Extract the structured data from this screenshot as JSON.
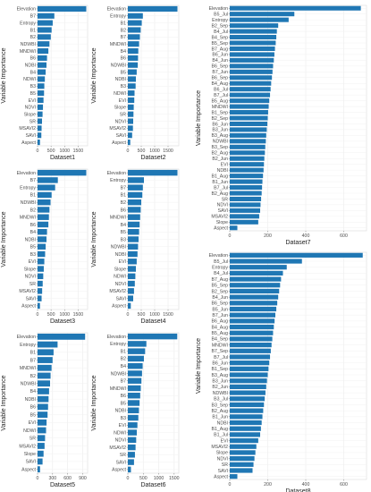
{
  "chart_data": [
    {
      "type": "bar",
      "orientation": "horizontal",
      "title": "",
      "xlabel": "Dataset1",
      "ylabel": "Variable Importance",
      "xlim": [
        0,
        1850
      ],
      "xticks": [
        0,
        500,
        1000,
        1500
      ],
      "grid": true,
      "categories": [
        "Elevation",
        "B7",
        "Entropy",
        "B1",
        "B2",
        "NDWBI",
        "MNDWI",
        "B6",
        "NDBI",
        "B4",
        "NDWI",
        "B3",
        "B5",
        "EVI",
        "NDVI",
        "Slope",
        "SR",
        "MSAVI2",
        "SAVI",
        "Aspect"
      ],
      "values": [
        1800,
        620,
        560,
        520,
        490,
        440,
        400,
        350,
        330,
        300,
        270,
        250,
        240,
        220,
        200,
        185,
        165,
        150,
        140,
        90
      ]
    },
    {
      "type": "bar",
      "orientation": "horizontal",
      "title": "",
      "xlabel": "Dataset2",
      "ylabel": "Variable Importance",
      "xlim": [
        0,
        1900
      ],
      "xticks": [
        0,
        500,
        1000,
        1500
      ],
      "grid": true,
      "categories": [
        "Elevation",
        "Entropy",
        "B1",
        "B2",
        "B7",
        "MNDWI",
        "B4",
        "B6",
        "NDWBI",
        "B5",
        "NDBI",
        "B3",
        "NDWI",
        "EVI",
        "Slope",
        "SR",
        "NDVI",
        "MSAVI2",
        "SAVI",
        "Aspect"
      ],
      "values": [
        1850,
        560,
        520,
        480,
        450,
        420,
        390,
        380,
        370,
        330,
        300,
        290,
        250,
        240,
        220,
        210,
        200,
        190,
        160,
        90
      ]
    },
    {
      "type": "bar",
      "orientation": "horizontal",
      "title": "",
      "xlabel": "Dataset3",
      "ylabel": "Variable Importance",
      "xlim": [
        0,
        1850
      ],
      "xticks": [
        0,
        500,
        1000,
        1500
      ],
      "grid": true,
      "categories": [
        "Elevation",
        "B7",
        "Entropy",
        "B1",
        "NDWBI",
        "B2",
        "MNDWI",
        "B6",
        "B4",
        "NDBI",
        "B5",
        "B3",
        "EVI",
        "Slope",
        "NDVI",
        "SR",
        "MSAVI2",
        "SAVI",
        "Aspect"
      ],
      "values": [
        1800,
        750,
        650,
        520,
        480,
        440,
        420,
        400,
        350,
        330,
        300,
        280,
        250,
        230,
        210,
        190,
        170,
        150,
        90
      ]
    },
    {
      "type": "bar",
      "orientation": "horizontal",
      "title": "",
      "xlabel": "Dataset4",
      "ylabel": "Variable Importance",
      "xlim": [
        0,
        1900
      ],
      "xticks": [
        0,
        500,
        1000,
        1500
      ],
      "grid": true,
      "categories": [
        "Elevation",
        "Entropy",
        "B7",
        "B1",
        "B2",
        "B6",
        "MNDWI",
        "B4",
        "B5",
        "B3",
        "NDWBI",
        "NDBI",
        "EVI",
        "Slope",
        "NDWI",
        "NDVI",
        "MSAVI2",
        "SAVI",
        "Aspect"
      ],
      "values": [
        1850,
        600,
        560,
        540,
        500,
        480,
        460,
        440,
        420,
        400,
        380,
        360,
        330,
        300,
        280,
        260,
        230,
        200,
        110
      ]
    },
    {
      "type": "bar",
      "orientation": "horizontal",
      "title": "",
      "xlabel": "Dataset5",
      "ylabel": "Variable Importance",
      "xlim": [
        0,
        1000
      ],
      "xticks": [
        0,
        300,
        600,
        900
      ],
      "grid": true,
      "categories": [
        "Elevation",
        "Entropy",
        "B1",
        "B7",
        "MNDWI",
        "B2",
        "NDWBI",
        "B4",
        "NDBI",
        "B6",
        "B5",
        "EVI",
        "NDWI",
        "SR",
        "MSAVI2",
        "Slope",
        "SAVI",
        "Aspect"
      ],
      "values": [
        950,
        400,
        320,
        300,
        280,
        260,
        250,
        230,
        220,
        210,
        200,
        180,
        170,
        150,
        140,
        120,
        100,
        50
      ]
    },
    {
      "type": "bar",
      "orientation": "horizontal",
      "title": "",
      "xlabel": "Dataset6",
      "ylabel": "Variable Importance",
      "xlim": [
        0,
        1650
      ],
      "xticks": [
        0,
        500,
        1000,
        1500
      ],
      "grid": true,
      "categories": [
        "Elevation",
        "Entropy",
        "B1",
        "B2",
        "B4",
        "NDWBI",
        "B7",
        "MNDWI",
        "B6",
        "B5",
        "NDBI",
        "B3",
        "EVI",
        "NDWI",
        "NDVI",
        "MSAVI2",
        "SR",
        "SAVI",
        "Aspect"
      ],
      "values": [
        1600,
        600,
        560,
        520,
        480,
        460,
        440,
        420,
        400,
        380,
        360,
        340,
        310,
        290,
        270,
        250,
        230,
        200,
        100
      ]
    },
    {
      "type": "bar",
      "orientation": "horizontal",
      "title": "",
      "xlabel": "Dataset7",
      "ylabel": "Variable Importance",
      "xlim": [
        0,
        720
      ],
      "xticks": [
        0,
        200,
        400,
        600
      ],
      "grid": true,
      "categories": [
        "Elevation",
        "B5_Jul",
        "Entropy",
        "B2_Sep",
        "B4_Jul",
        "B4_Sep",
        "B5_Sep",
        "B7_Aug",
        "B6_Jun",
        "B4_Jun",
        "B6_Sep",
        "B7_Jun",
        "B6_Sep",
        "B4_Aug",
        "B6_Jul",
        "B7_Jul",
        "B5_Aug",
        "MNDWI",
        "B1_Sep",
        "B2_Sep",
        "B6_Jun",
        "B3_Jun",
        "B3_Aug",
        "NDWBI",
        "B3_Sep",
        "B2_Aug",
        "B2_Jun",
        "EVI",
        "NDBI",
        "B1_Aug",
        "B1_Jun",
        "B7_Jul",
        "B2_Aug",
        "SR",
        "NDVI",
        "SAVI",
        "MSAVI2",
        "Slope",
        "Aspect"
      ],
      "values": [
        690,
        340,
        310,
        255,
        248,
        245,
        242,
        238,
        235,
        232,
        228,
        225,
        222,
        218,
        215,
        212,
        208,
        205,
        202,
        200,
        198,
        195,
        192,
        190,
        187,
        185,
        182,
        180,
        178,
        175,
        172,
        170,
        168,
        165,
        162,
        160,
        155,
        150,
        40
      ]
    },
    {
      "type": "bar",
      "orientation": "horizontal",
      "title": "",
      "xlabel": "Dataset8",
      "ylabel": "Variable Importance",
      "xlim": [
        0,
        720
      ],
      "xticks": [
        0,
        200,
        400,
        600
      ],
      "grid": true,
      "categories": [
        "Elevation",
        "B5_Jul",
        "Entropy",
        "B4_Jul",
        "B7_Aug",
        "B5_Sep",
        "B2_Sep",
        "B4_Jun",
        "B6_Sep",
        "B5_Jun",
        "B7_Jun",
        "B6_Aug",
        "B4_Aug",
        "B5_Aug",
        "B4_Sep",
        "MNDWI",
        "B7_Sep",
        "B7_Jul",
        "B6_Jun",
        "B1_Sep",
        "B3_Aug",
        "B3_Jun",
        "B2_Jun",
        "NDWBI",
        "B3_Jul",
        "B3_Sep",
        "B2_Aug",
        "B1_Jun",
        "NDBI",
        "B1_Aug",
        "B1_Jul",
        "EVI",
        "MSAVI2",
        "Slope",
        "NDVI",
        "SR",
        "SAVI",
        "Aspect"
      ],
      "values": [
        700,
        380,
        300,
        280,
        270,
        265,
        260,
        255,
        250,
        245,
        240,
        236,
        232,
        228,
        224,
        220,
        216,
        212,
        208,
        204,
        200,
        196,
        192,
        188,
        184,
        180,
        176,
        172,
        168,
        164,
        160,
        150,
        140,
        135,
        130,
        125,
        120,
        40
      ]
    }
  ]
}
